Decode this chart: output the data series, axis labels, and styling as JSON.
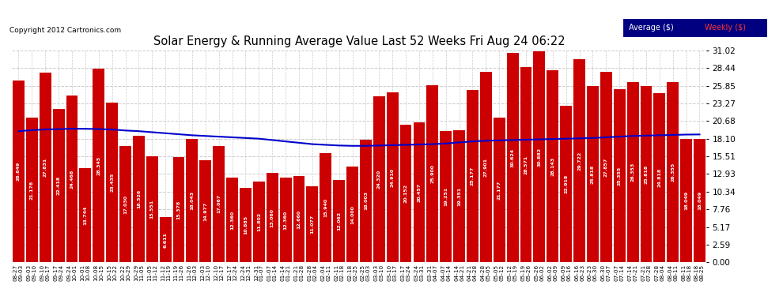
{
  "title": "Solar Energy & Running Average Value Last 52 Weeks Fri Aug 24 06:22",
  "copyright": "Copyright 2012 Cartronics.com",
  "bar_color": "#cc0000",
  "avg_line_color": "#0000cc",
  "background_color": "#ffffff",
  "grid_color": "#cccccc",
  "ylabel_right": [
    "0.00",
    "2.59",
    "5.17",
    "7.76",
    "10.34",
    "12.93",
    "15.51",
    "18.10",
    "20.68",
    "23.27",
    "25.85",
    "28.44",
    "31.02"
  ],
  "ymax": 31.02,
  "categories_line1": [
    "08-27",
    "09-03",
    "09-10",
    "09-17",
    "09-24",
    "10-01",
    "10-08",
    "10-15",
    "10-22",
    "10-29",
    "11-05",
    "11-12",
    "11-19",
    "11-26",
    "12-03",
    "12-10",
    "12-17",
    "12-24",
    "12-31",
    "01-07",
    "01-14",
    "01-21",
    "01-28",
    "02-04",
    "02-11",
    "02-18",
    "02-25",
    "03-03",
    "03-10",
    "03-17",
    "03-24",
    "03-31",
    "04-07",
    "04-14",
    "04-21",
    "04-28",
    "05-05",
    "05-12",
    "05-19",
    "05-26",
    "06-02",
    "06-09",
    "06-16",
    "06-23",
    "06-30",
    "07-07",
    "07-14",
    "07-21",
    "07-28",
    "08-04",
    "08-11",
    "08-18"
  ],
  "categories_line2": [
    "09-03",
    "09-10",
    "09-17",
    "09-24",
    "10-01",
    "10-08",
    "10-15",
    "10-22",
    "10-29",
    "11-05",
    "11-12",
    "11-19",
    "11-26",
    "12-03",
    "12-10",
    "12-17",
    "12-24",
    "12-31",
    "01-07",
    "01-14",
    "01-21",
    "01-28",
    "02-04",
    "02-11",
    "02-18",
    "02-25",
    "03-03",
    "03-10",
    "03-17",
    "03-24",
    "03-31",
    "04-07",
    "04-14",
    "04-21",
    "04-28",
    "05-05",
    "05-12",
    "05-19",
    "05-26",
    "06-02",
    "06-09",
    "06-16",
    "06-23",
    "06-30",
    "07-07",
    "07-14",
    "07-21",
    "07-28",
    "08-04",
    "08-11",
    "08-18",
    "08-25"
  ],
  "values": [
    26.649,
    21.178,
    27.831,
    22.418,
    24.468,
    13.744,
    28.345,
    23.435,
    17.03,
    18.526,
    15.551,
    6.611,
    15.378,
    18.043,
    14.977,
    17.067,
    12.36,
    10.885,
    11.802,
    13.06,
    12.36,
    12.66,
    11.077,
    15.94,
    12.062,
    14.0,
    18.003,
    24.32,
    24.91,
    20.152,
    20.457,
    25.9,
    19.251,
    19.351,
    25.177,
    27.901,
    21.177,
    30.624,
    28.571,
    30.882,
    28.143,
    22.918,
    29.722,
    25.818,
    27.857,
    25.355,
    26.353,
    25.818,
    24.818,
    26.355,
    18.049,
    18.049
  ],
  "avg_values": [
    19.2,
    19.35,
    19.45,
    19.5,
    19.55,
    19.55,
    19.5,
    19.45,
    19.3,
    19.2,
    19.05,
    18.9,
    18.75,
    18.6,
    18.5,
    18.4,
    18.3,
    18.2,
    18.1,
    17.9,
    17.7,
    17.5,
    17.3,
    17.2,
    17.1,
    17.05,
    17.05,
    17.1,
    17.15,
    17.2,
    17.25,
    17.3,
    17.4,
    17.55,
    17.7,
    17.8,
    17.85,
    17.9,
    17.95,
    18.0,
    18.05,
    18.1,
    18.15,
    18.2,
    18.3,
    18.4,
    18.5,
    18.55,
    18.6,
    18.65,
    18.7,
    18.72
  ],
  "legend_avg_color": "#ffffff",
  "legend_weekly_color": "#ff3333",
  "legend_bg": "#000080"
}
